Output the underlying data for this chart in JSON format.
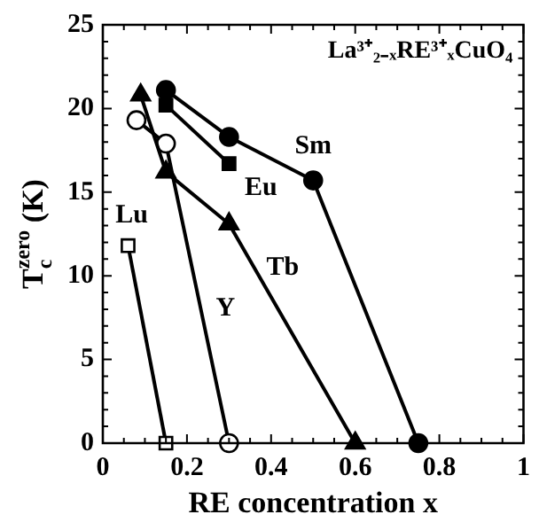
{
  "chart_data": {
    "type": "line",
    "xlabel": "RE concentration x",
    "ylabel": "T$_{c}$$^{zero}$ (K)",
    "annotations": [
      "La³⁺₂₋ₓRE³⁺ₓCuO₄"
    ],
    "series": [
      {
        "name": "Sm",
        "color": "#000000",
        "marker": "circle",
        "x": [
          0.15,
          0.3,
          0.5,
          0.75
        ],
        "values": [
          21.1,
          18.3,
          15.7,
          0
        ]
      },
      {
        "name": "Eu",
        "color": "#000000",
        "marker": "square",
        "x": [
          0.15,
          0.3
        ],
        "values": [
          20.2,
          16.7
        ]
      },
      {
        "name": "Tb",
        "color": "#000000",
        "marker": "triangle",
        "x": [
          0.09,
          0.15,
          0.3,
          0.6
        ],
        "values": [
          20.8,
          16.2,
          13.1,
          0
        ]
      },
      {
        "name": "Y",
        "color": "#000000",
        "marker": "circle",
        "colors": [
          "#ffffff",
          "#ffffff",
          "#ffffff"
        ],
        "x": [
          0.08,
          0.15,
          0.3
        ],
        "values": [
          19.3,
          17.9,
          0
        ]
      },
      {
        "name": "Lu",
        "color": "#000000",
        "marker": "square",
        "colors": [
          "#ffffff",
          "#ffffff"
        ],
        "x": [
          0.06,
          0.15
        ],
        "values": [
          11.8,
          0
        ]
      }
    ],
    "xlim": [
      0,
      1
    ],
    "ylim": [
      0,
      25
    ],
    "xticks": [
      0,
      {
        "value": 0.05,
        "label": null
      },
      {
        "value": 0.1,
        "label": null
      },
      {
        "value": 0.15,
        "label": null
      },
      0.2,
      {
        "value": 0.25,
        "label": null
      },
      {
        "value": 0.3,
        "label": null
      },
      {
        "value": 0.35,
        "label": null
      },
      0.4,
      {
        "value": 0.45,
        "label": null
      },
      {
        "value": 0.5,
        "label": null
      },
      {
        "value": 0.55,
        "label": null
      },
      0.6,
      {
        "value": 0.65,
        "label": null
      },
      {
        "value": 0.7,
        "label": null
      },
      {
        "value": 0.75,
        "label": null
      },
      0.8,
      {
        "value": 0.85,
        "label": null
      },
      {
        "value": 0.9,
        "label": null
      },
      {
        "value": 0.95,
        "label": null
      },
      1
    ],
    "yticks": [
      0,
      {
        "value": 1,
        "label": null
      },
      {
        "value": 2,
        "label": null
      },
      {
        "value": 3,
        "label": null
      },
      {
        "value": 4,
        "label": null
      },
      5,
      {
        "value": 6,
        "label": null
      },
      {
        "value": 7,
        "label": null
      },
      {
        "value": 8,
        "label": null
      },
      {
        "value": 9,
        "label": null
      },
      10,
      {
        "value": 11,
        "label": null
      },
      {
        "value": 12,
        "label": null
      },
      {
        "value": 13,
        "label": null
      },
      {
        "value": 14,
        "label": null
      },
      15,
      {
        "value": 16,
        "label": null
      },
      {
        "value": 17,
        "label": null
      },
      {
        "value": 18,
        "label": null
      },
      {
        "value": 19,
        "label": null
      },
      20,
      {
        "value": 21,
        "label": null
      },
      {
        "value": 22,
        "label": null
      },
      {
        "value": 23,
        "label": null
      },
      {
        "value": 24,
        "label": null
      },
      25
    ],
    "grid": false,
    "legend": false,
    "line_style": "solid"
  }
}
